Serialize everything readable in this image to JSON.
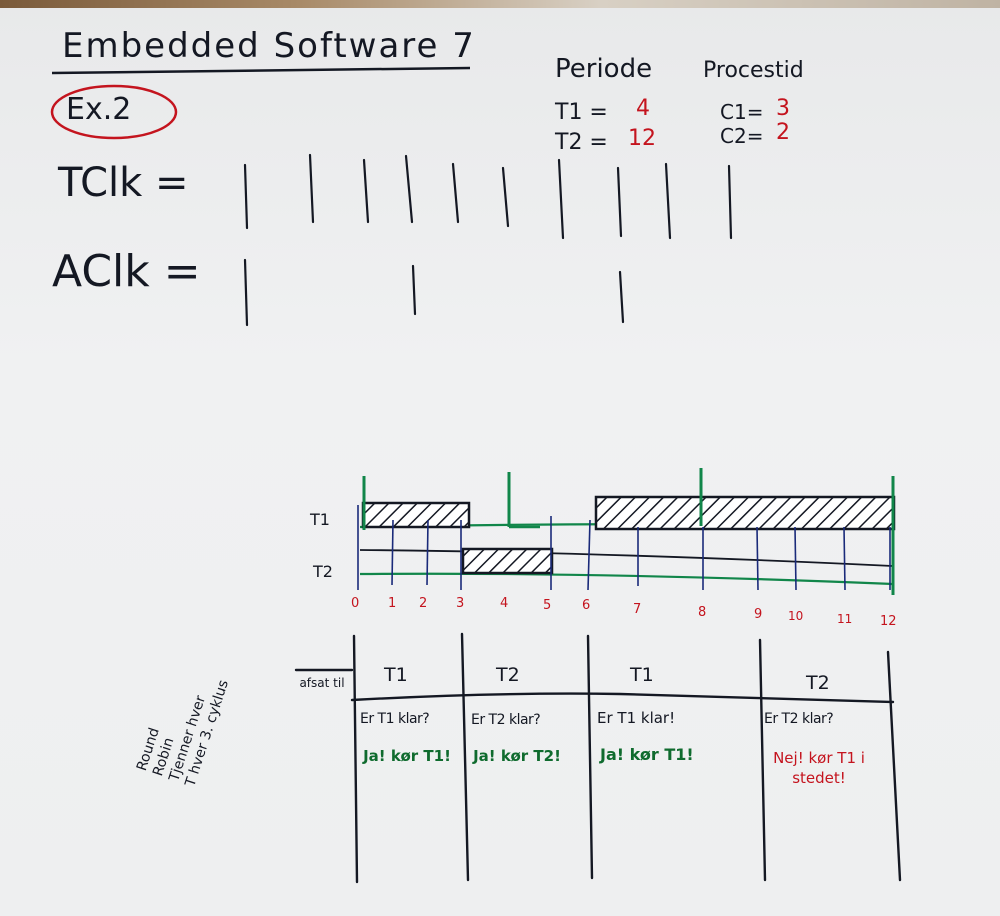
{
  "header": {
    "title": "Embedded Software 7",
    "exercise": "Ex.2"
  },
  "task_table": {
    "col_period": "Periode",
    "col_process": "Procestid",
    "rows": [
      {
        "period_name": "T1 =",
        "period_value": "4",
        "process_name": "C1=",
        "process_value": "3"
      },
      {
        "period_name": "T2 =",
        "period_value": "12",
        "process_name": "C2=",
        "process_value": "2"
      }
    ]
  },
  "clocks": {
    "tclk_label": "TClk =",
    "aclk_label": "AClk ="
  },
  "timeline": {
    "row_labels": [
      "T1",
      "T2"
    ],
    "ticks": [
      "0",
      "1",
      "2",
      "3",
      "4",
      "5",
      "6",
      "7",
      "8",
      "9",
      "10",
      "11",
      "12"
    ]
  },
  "side_note": {
    "lines": [
      "Round",
      "Robin",
      "Tjenner hver",
      "T hver 3. cyklus"
    ]
  },
  "schedule_table": {
    "row_header": "afsat til",
    "columns": [
      {
        "task": "T1",
        "question": "Er T1 klar?",
        "answer": "Ja! kør T1!",
        "answer_color": "#0f6b2e"
      },
      {
        "task": "T2",
        "question": "Er T2 klar?",
        "answer": "Ja! kør T2!",
        "answer_color": "#0f6b2e"
      },
      {
        "task": "T1",
        "question": "Er T1 klar!",
        "answer": "Ja! kør T1!",
        "answer_color": "#0f6b2e"
      },
      {
        "task": "T2",
        "question": "Er T2 klar?",
        "answer": "Nej! kør T1 i stedet!",
        "answer_color": "#c4141e"
      }
    ]
  },
  "colors": {
    "ink": "#141823",
    "red_marker": "#c4141e",
    "green_marker": "#11864a",
    "blue_marker": "#1a2a7a"
  }
}
